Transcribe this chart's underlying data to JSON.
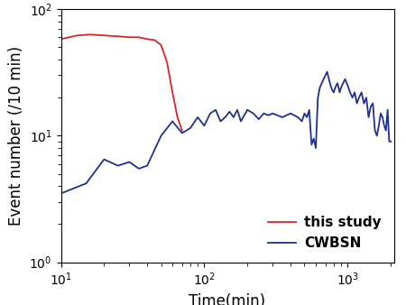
{
  "xlabel": "Time(min)",
  "ylabel": "Event number (/10 min)",
  "xlim": [
    10,
    2100
  ],
  "ylim": [
    1,
    100
  ],
  "red_x": [
    10,
    13,
    16,
    20,
    25,
    30,
    35,
    40,
    45,
    50,
    55,
    60,
    65,
    70
  ],
  "red_y": [
    58,
    62,
    63,
    62,
    61,
    60,
    60,
    58,
    57,
    52,
    38,
    22,
    14,
    11
  ],
  "blue_x": [
    10,
    15,
    20,
    25,
    30,
    35,
    40,
    50,
    60,
    70,
    80,
    90,
    100,
    110,
    120,
    130,
    140,
    150,
    160,
    170,
    180,
    190,
    200,
    220,
    240,
    260,
    280,
    300,
    350,
    400,
    450,
    480,
    500,
    520,
    540,
    560,
    580,
    600,
    620,
    640,
    660,
    680,
    700,
    720,
    740,
    760,
    780,
    800,
    820,
    850,
    880,
    900,
    930,
    960,
    1000,
    1040,
    1080,
    1120,
    1160,
    1200,
    1250,
    1300,
    1350,
    1400,
    1450,
    1500,
    1550,
    1600,
    1650,
    1700,
    1750,
    1800,
    1850,
    1900,
    1950,
    2000
  ],
  "blue_y": [
    3.5,
    4.2,
    6.5,
    5.8,
    6.2,
    5.5,
    5.8,
    10.0,
    13.0,
    10.5,
    11.5,
    14.0,
    12.0,
    15.0,
    16.0,
    13.0,
    14.0,
    15.5,
    14.0,
    16.0,
    13.0,
    14.5,
    16.0,
    15.0,
    13.5,
    15.0,
    14.5,
    15.0,
    14.0,
    15.0,
    14.0,
    13.0,
    15.0,
    14.0,
    16.0,
    8.5,
    9.5,
    8.0,
    20.0,
    24.0,
    26.0,
    28.0,
    30.0,
    32.0,
    28.0,
    25.0,
    23.0,
    22.0,
    24.0,
    26.0,
    22.0,
    24.0,
    26.0,
    28.0,
    25.0,
    22.0,
    20.0,
    22.0,
    18.0,
    20.0,
    22.0,
    18.0,
    20.0,
    14.0,
    17.0,
    18.0,
    11.0,
    10.0,
    12.0,
    15.0,
    14.0,
    12.0,
    11.0,
    16.0,
    9.0,
    9.0
  ],
  "red_color": "#d62728",
  "blue_color": "#1f3090",
  "line_width": 1.3,
  "legend_labels": [
    "this study",
    "CWBSN"
  ],
  "legend_fontsize": 11,
  "axis_fontsize": 12,
  "tick_fontsize": 10,
  "background_color": "#ffffff"
}
